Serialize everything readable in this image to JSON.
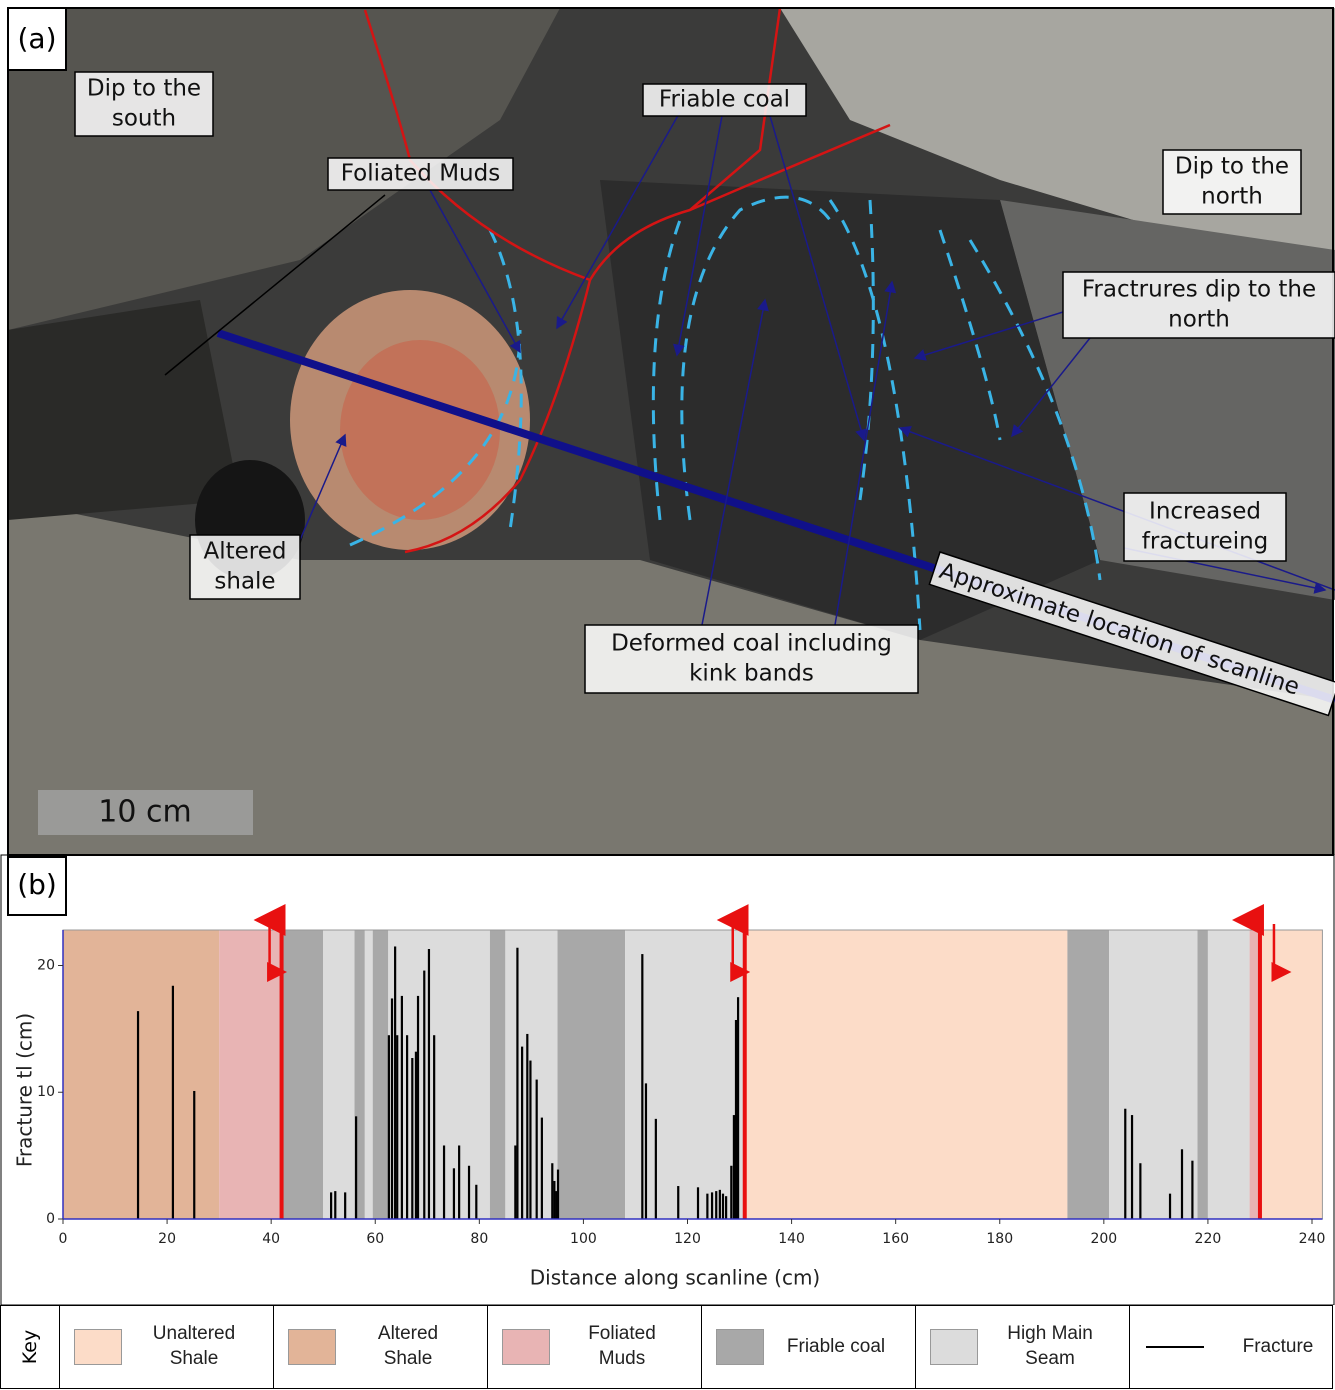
{
  "panel_a": {
    "label": "(a)",
    "scale_bar": "10 cm",
    "annotations": [
      {
        "lines": [
          "Dip to the",
          "south"
        ]
      },
      {
        "lines": [
          "Foliated Muds"
        ]
      },
      {
        "lines": [
          "Friable coal"
        ]
      },
      {
        "lines": [
          "Dip to the",
          "north"
        ]
      },
      {
        "lines": [
          "Fractrures dip to the",
          "north"
        ]
      },
      {
        "lines": [
          "Increased",
          "fractureing"
        ]
      },
      {
        "lines": [
          "Altered",
          "shale"
        ]
      },
      {
        "lines": [
          "Deformed coal including",
          "kink bands"
        ]
      },
      {
        "lines": [
          "Approximate location of scanline"
        ]
      }
    ]
  },
  "chart_data": {
    "type": "bar",
    "panel_label": "(b)",
    "x_label": "Distance along scanline (cm)",
    "y_label": "Fracture tl (cm)",
    "xlim": [
      0,
      242
    ],
    "ylim": [
      0,
      22.8
    ],
    "xticks": [
      0,
      20,
      40,
      60,
      80,
      100,
      120,
      140,
      160,
      180,
      200,
      220,
      240
    ],
    "yticks": [
      0,
      10,
      20
    ],
    "units": [
      {
        "name": "Unaltered Shale",
        "color": "#fcdcc8",
        "intervals": [
          [
            131,
            193
          ],
          [
            230,
            242
          ]
        ]
      },
      {
        "name": "Altered Shale",
        "color": "#e2b498",
        "intervals": [
          [
            0,
            30
          ]
        ]
      },
      {
        "name": "Foliated Muds",
        "color": "#e8b4b4",
        "intervals": [
          [
            30,
            42
          ],
          [
            228,
            230
          ]
        ]
      },
      {
        "name": "Friable coal",
        "color": "#a8a8a8",
        "intervals": [
          [
            42,
            50
          ],
          [
            56,
            58
          ],
          [
            59.5,
            62.5
          ],
          [
            82,
            85
          ],
          [
            95,
            108
          ],
          [
            193,
            201
          ],
          [
            218,
            220
          ]
        ]
      },
      {
        "name": "High Main Seam",
        "color": "#dcdcdc",
        "intervals": [
          [
            50,
            56
          ],
          [
            58,
            59.5
          ],
          [
            62.5,
            82
          ],
          [
            85,
            95
          ],
          [
            108,
            131
          ],
          [
            201,
            218
          ],
          [
            220,
            228
          ]
        ]
      }
    ],
    "series": [
      {
        "name": "Fracture",
        "color": "#000000",
        "x": [
          14.4,
          21.1,
          25.2,
          51.5,
          52.3,
          54.2,
          56.3,
          62.6,
          63.2,
          63.8,
          64.2,
          65.1,
          66.1,
          67.1,
          67.8,
          68.2,
          69.4,
          70.3,
          71.3,
          73.2,
          75.1,
          76.1,
          78.0,
          79.4,
          86.9,
          87.3,
          88.2,
          89.2,
          89.8,
          91.0,
          92.0,
          94.0,
          94.4,
          94.8,
          95.1,
          111.3,
          112.0,
          113.9,
          118.2,
          122.0,
          123.8,
          124.7,
          125.5,
          126.2,
          126.8,
          127.4,
          128.4,
          128.9,
          129.3,
          129.7,
          204.1,
          205.4,
          207.0,
          212.7,
          215.0,
          217.0
        ],
        "values": [
          16.4,
          18.4,
          10.1,
          2.1,
          2.2,
          2.1,
          8.1,
          14.5,
          17.4,
          21.5,
          14.5,
          17.6,
          14.5,
          12.7,
          13.2,
          17.6,
          19.6,
          21.3,
          14.5,
          5.8,
          4.0,
          5.8,
          4.2,
          2.7,
          5.8,
          21.4,
          13.6,
          14.6,
          12.5,
          11.0,
          8.0,
          4.4,
          3.0,
          2.2,
          3.9,
          20.9,
          10.7,
          7.9,
          2.6,
          2.5,
          2.0,
          2.1,
          2.2,
          2.3,
          2.0,
          1.8,
          4.2,
          8.2,
          15.7,
          17.5,
          8.7,
          8.2,
          4.4,
          2.0,
          5.5,
          4.6
        ]
      }
    ],
    "faults": [
      42,
      131,
      230
    ]
  },
  "key": {
    "title": "Key"
  }
}
